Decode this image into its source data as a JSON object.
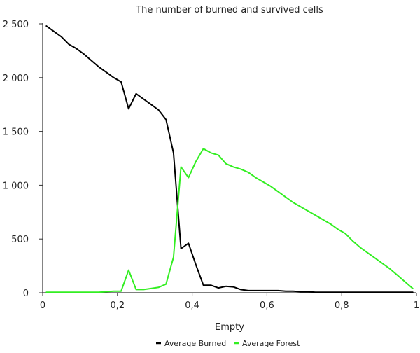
{
  "chart_data": {
    "type": "line",
    "title": "The number of burned and survived cells",
    "xlabel": "Empty",
    "ylabel": "",
    "xlim": [
      0,
      1
    ],
    "ylim": [
      0,
      2500
    ],
    "x_ticks": [
      0,
      0.2,
      0.4,
      0.6,
      0.8,
      1
    ],
    "x_tick_labels": [
      "0",
      "0,2",
      "0,4",
      "0,6",
      "0,8",
      "1"
    ],
    "y_ticks": [
      0,
      500,
      1000,
      1500,
      2000,
      2500
    ],
    "y_tick_labels": [
      "0",
      "500",
      "1 000",
      "1 500",
      "2 000",
      "2 500"
    ],
    "grid": false,
    "legend_position": "bottom-center",
    "x": [
      0.01,
      0.03,
      0.05,
      0.07,
      0.09,
      0.11,
      0.13,
      0.15,
      0.17,
      0.19,
      0.21,
      0.23,
      0.25,
      0.27,
      0.29,
      0.31,
      0.33,
      0.35,
      0.37,
      0.39,
      0.41,
      0.43,
      0.45,
      0.47,
      0.49,
      0.51,
      0.53,
      0.55,
      0.57,
      0.59,
      0.61,
      0.63,
      0.65,
      0.67,
      0.69,
      0.71,
      0.73,
      0.75,
      0.77,
      0.79,
      0.81,
      0.83,
      0.85,
      0.87,
      0.89,
      0.91,
      0.93,
      0.95,
      0.97,
      0.99
    ],
    "series": [
      {
        "name": "Average Burned",
        "color": "#000000",
        "values": [
          2480,
          2430,
          2380,
          2310,
          2270,
          2220,
          2160,
          2100,
          2050,
          2000,
          1960,
          1710,
          1850,
          1800,
          1750,
          1700,
          1610,
          1300,
          410,
          460,
          260,
          70,
          70,
          45,
          60,
          55,
          30,
          20,
          20,
          20,
          20,
          20,
          15,
          15,
          10,
          10,
          5,
          5,
          5,
          5,
          5,
          5,
          5,
          5,
          5,
          5,
          5,
          5,
          5,
          5
        ]
      },
      {
        "name": "Average Forest",
        "color": "#33ee22",
        "values": [
          5,
          5,
          5,
          5,
          5,
          5,
          5,
          5,
          10,
          15,
          15,
          210,
          30,
          30,
          40,
          50,
          80,
          330,
          1170,
          1070,
          1220,
          1340,
          1300,
          1280,
          1200,
          1170,
          1150,
          1120,
          1070,
          1030,
          990,
          940,
          890,
          840,
          800,
          760,
          720,
          680,
          640,
          590,
          550,
          480,
          420,
          370,
          320,
          270,
          220,
          160,
          100,
          40
        ]
      }
    ]
  }
}
